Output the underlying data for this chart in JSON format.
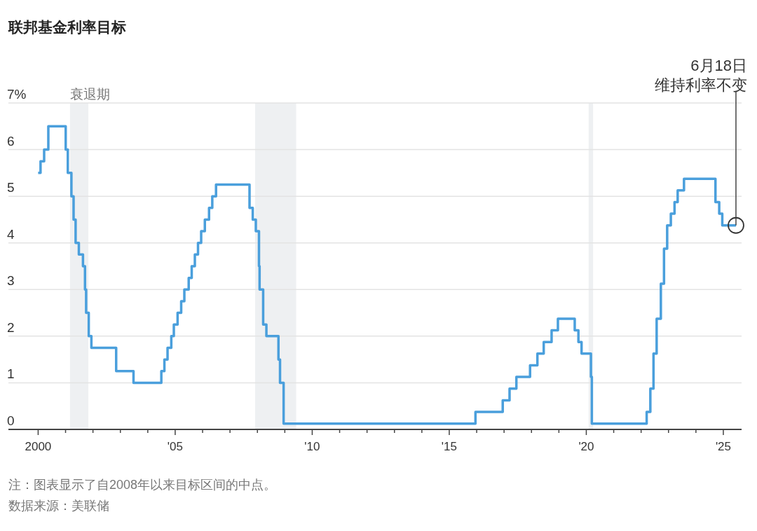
{
  "chart_data": {
    "type": "step",
    "title": "联邦基金利率目标",
    "annotations": [
      "6月18日",
      {
        "text": "维持利率不变",
        "x": "2025-06-18",
        "y": 4.375
      },
      "注：图表显示了自2008年以来目标区间的中点。",
      "数据来源：美联储"
    ],
    "x": [
      "2000-01-01",
      "2000-02-02",
      "2000-03-21",
      "2000-05-16",
      "2001-01-03",
      "2001-01-31",
      "2001-03-20",
      "2001-04-18",
      "2001-05-15",
      "2001-06-27",
      "2001-08-21",
      "2001-09-17",
      "2001-10-02",
      "2001-11-06",
      "2001-12-11",
      "2002-11-06",
      "2003-06-25",
      "2004-06-30",
      "2004-08-10",
      "2004-09-21",
      "2004-11-10",
      "2004-12-14",
      "2005-02-02",
      "2005-03-22",
      "2005-05-03",
      "2005-06-30",
      "2005-08-09",
      "2005-09-20",
      "2005-11-01",
      "2005-12-13",
      "2006-01-31",
      "2006-03-28",
      "2006-05-10",
      "2006-06-29",
      "2007-09-18",
      "2007-10-31",
      "2007-12-11",
      "2008-01-22",
      "2008-01-30",
      "2008-03-18",
      "2008-04-30",
      "2008-10-08",
      "2008-10-29",
      "2008-12-16",
      "2015-12-16",
      "2016-12-14",
      "2017-03-15",
      "2017-06-14",
      "2017-12-13",
      "2018-03-21",
      "2018-06-13",
      "2018-09-26",
      "2018-12-19",
      "2019-07-31",
      "2019-09-18",
      "2019-10-30",
      "2020-03-03",
      "2020-03-15",
      "2022-03-16",
      "2022-05-04",
      "2022-06-15",
      "2022-07-27",
      "2022-09-21",
      "2022-11-02",
      "2022-12-14",
      "2023-02-01",
      "2023-03-22",
      "2023-05-03",
      "2023-07-26",
      "2024-09-18",
      "2024-11-07",
      "2024-12-18",
      "2025-06-18"
    ],
    "series": [
      {
        "color": "#4a9fdc",
        "values": [
          5.5,
          5.75,
          6.0,
          6.5,
          6.0,
          5.5,
          5.0,
          4.5,
          4.0,
          3.75,
          3.5,
          3.0,
          2.5,
          2.0,
          1.75,
          1.25,
          1.0,
          1.25,
          1.5,
          1.75,
          2.0,
          2.25,
          2.5,
          2.75,
          3.0,
          3.25,
          3.5,
          3.75,
          4.0,
          4.25,
          4.5,
          4.75,
          5.0,
          5.25,
          4.75,
          4.5,
          4.25,
          3.5,
          3.0,
          2.25,
          2.0,
          1.5,
          1.0,
          0.125,
          0.375,
          0.625,
          0.875,
          1.125,
          1.375,
          1.625,
          1.875,
          2.125,
          2.375,
          2.125,
          1.875,
          1.625,
          1.125,
          0.125,
          0.375,
          0.875,
          1.625,
          2.375,
          3.125,
          3.875,
          4.375,
          4.625,
          4.875,
          5.125,
          5.375,
          4.875,
          4.625,
          4.375,
          4.375
        ]
      }
    ],
    "xlim": [
      "1998-12-01",
      "2025-09-01"
    ],
    "xticks": [
      {
        "value": "2000",
        "label": "2000"
      },
      {
        "value": "2001",
        "label": null
      },
      {
        "value": "2002",
        "label": null
      },
      {
        "value": "2003",
        "label": null
      },
      {
        "value": "2004",
        "label": null
      },
      {
        "value": "2005",
        "label": "'05"
      },
      {
        "value": "2006",
        "label": null
      },
      {
        "value": "2007",
        "label": null
      },
      {
        "value": "2008",
        "label": null
      },
      {
        "value": "2009",
        "label": null
      },
      {
        "value": "2010",
        "label": "'10"
      },
      {
        "value": "2011",
        "label": null
      },
      {
        "value": "2012",
        "label": null
      },
      {
        "value": "2013",
        "label": null
      },
      {
        "value": "2014",
        "label": null
      },
      {
        "value": "2015",
        "label": "'15"
      },
      {
        "value": "2016",
        "label": null
      },
      {
        "value": "2017",
        "label": null
      },
      {
        "value": "2018",
        "label": null
      },
      {
        "value": "2019",
        "label": null
      },
      {
        "value": "2020",
        "label": "'20"
      },
      {
        "value": "2021",
        "label": null
      },
      {
        "value": "2022",
        "label": null
      },
      {
        "value": "2023",
        "label": null
      },
      {
        "value": "2024",
        "label": null
      },
      {
        "value": "2025",
        "label": "'25"
      }
    ],
    "ylim": [
      0,
      7
    ],
    "yticks": [
      0,
      1,
      2,
      3,
      4,
      5,
      6,
      {
        "value": 7,
        "label": "7%"
      }
    ],
    "grid": "y",
    "bands": [
      {
        "axis": "x",
        "from": "2001-03-01",
        "to": "2001-11-01",
        "label": "衰退期",
        "color": "#eef0f2"
      },
      {
        "axis": "x",
        "from": "2007-12-01",
        "to": "2009-06-01",
        "color": "#eef0f2"
      },
      {
        "axis": "x",
        "from": "2020-02-01",
        "to": "2020-04-01",
        "color": "#eef0f2"
      }
    ]
  }
}
